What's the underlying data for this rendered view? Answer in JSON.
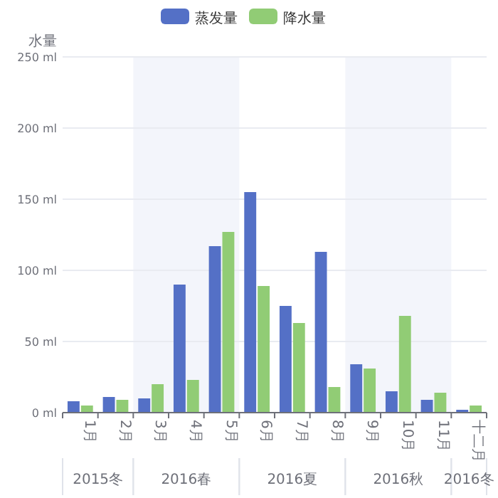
{
  "chart_data": {
    "type": "bar",
    "ylabel": "水量",
    "categories": [
      "1月",
      "2月",
      "3月",
      "4月",
      "5月",
      "6月",
      "7月",
      "8月",
      "9月",
      "10月",
      "11月",
      "十二月"
    ],
    "series": [
      {
        "name": "蒸发量",
        "color": "#5470c6",
        "values": [
          8,
          11,
          10,
          90,
          117,
          155,
          75,
          113,
          34,
          15,
          9,
          2
        ]
      },
      {
        "name": "降水量",
        "color": "#91cc75",
        "values": [
          5,
          9,
          20,
          23,
          127,
          89,
          63,
          18,
          31,
          68,
          14,
          5
        ]
      }
    ],
    "ylim": [
      0,
      250
    ],
    "yticks": [
      {
        "value": 0,
        "label": "0 ml"
      },
      {
        "value": 50,
        "label": "50 ml"
      },
      {
        "value": 100,
        "label": "100 ml"
      },
      {
        "value": 150,
        "label": "150 ml"
      },
      {
        "value": 200,
        "label": "200 ml"
      },
      {
        "value": 250,
        "label": "250 ml"
      }
    ],
    "grid": "y",
    "legend": "top",
    "annotations": [
      "2015冬",
      "2016春",
      "2016夏",
      "2016秋",
      "2016冬"
    ]
  }
}
